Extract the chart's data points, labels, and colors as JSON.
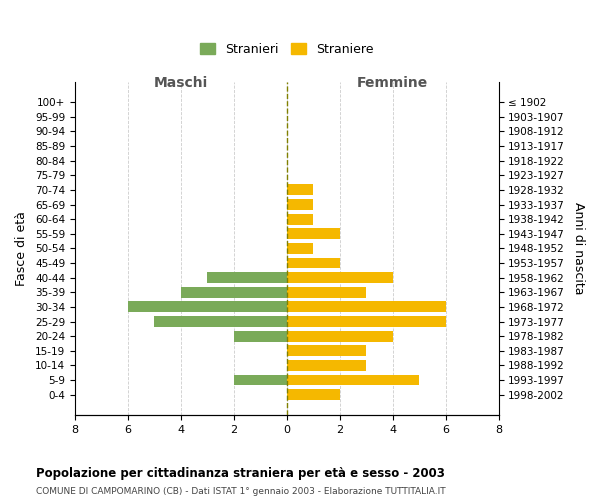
{
  "age_groups": [
    "100+",
    "95-99",
    "90-94",
    "85-89",
    "80-84",
    "75-79",
    "70-74",
    "65-69",
    "60-64",
    "55-59",
    "50-54",
    "45-49",
    "40-44",
    "35-39",
    "30-34",
    "25-29",
    "20-24",
    "15-19",
    "10-14",
    "5-9",
    "0-4"
  ],
  "birth_years": [
    "≤ 1902",
    "1903-1907",
    "1908-1912",
    "1913-1917",
    "1918-1922",
    "1923-1927",
    "1928-1932",
    "1933-1937",
    "1938-1942",
    "1943-1947",
    "1948-1952",
    "1953-1957",
    "1958-1962",
    "1963-1967",
    "1968-1972",
    "1973-1977",
    "1978-1982",
    "1983-1987",
    "1988-1992",
    "1993-1997",
    "1998-2002"
  ],
  "maschi": [
    0,
    0,
    0,
    0,
    0,
    0,
    0,
    0,
    0,
    0,
    0,
    0,
    3,
    4,
    6,
    5,
    2,
    0,
    0,
    2,
    0
  ],
  "femmine": [
    0,
    0,
    0,
    0,
    0,
    0,
    1,
    1,
    1,
    2,
    1,
    2,
    4,
    3,
    6,
    6,
    4,
    3,
    3,
    5,
    2
  ],
  "color_maschi": "#7aaa59",
  "color_femmine": "#f5b800",
  "title": "Popolazione per cittadinanza straniera per età e sesso - 2003",
  "subtitle": "COMUNE DI CAMPOMARINO (CB) - Dati ISTAT 1° gennaio 2003 - Elaborazione TUTTITALIA.IT",
  "xlabel_left": "Maschi",
  "xlabel_right": "Femmine",
  "ylabel_left": "Fasce di età",
  "ylabel_right": "Anni di nascita",
  "legend_stranieri": "Stranieri",
  "legend_straniere": "Straniere",
  "xlim": 8,
  "bg_color": "#ffffff",
  "grid_color": "#cccccc",
  "bar_height": 0.75
}
